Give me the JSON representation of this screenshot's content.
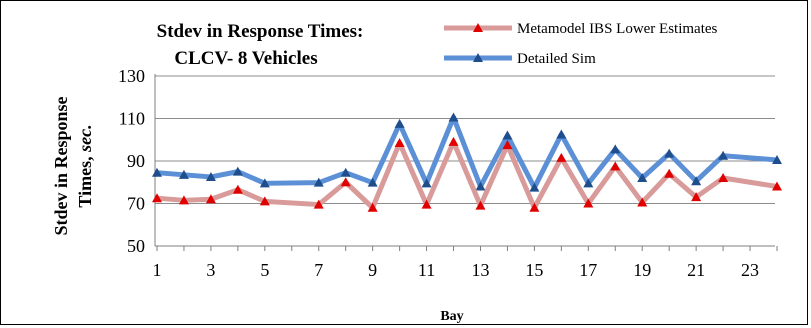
{
  "chart_data": {
    "type": "line",
    "title_lines": [
      "Stdev in Response Times:",
      "CLCV- 8 Vehicles"
    ],
    "xlabel": "Bay",
    "ylabel_main": "Stdev in Response",
    "ylabel_plain": "Times, ",
    "ylabel_italic": "sec.",
    "x_ticks": [
      1,
      3,
      5,
      7,
      9,
      11,
      13,
      15,
      17,
      19,
      21,
      23
    ],
    "y_ticks": [
      50,
      70,
      90,
      110,
      130
    ],
    "xlim": [
      1,
      24
    ],
    "ylim": [
      50,
      130
    ],
    "grid": "horizontal",
    "legend_position": "top-right",
    "series": [
      {
        "name": "Detailed Sim",
        "color": "#5b8fd6",
        "marker_color": "#1f4e8c",
        "x": [
          1,
          2,
          3,
          4,
          5,
          7,
          8,
          9,
          10,
          11,
          12,
          13,
          14,
          15,
          16,
          17,
          18,
          19,
          20,
          21,
          22,
          24
        ],
        "y": [
          84.5,
          83.5,
          82.5,
          85,
          79.5,
          79.8,
          84.5,
          79.8,
          107.5,
          79.5,
          110.5,
          78,
          102,
          77.5,
          102.5,
          79.5,
          95.5,
          82,
          93.5,
          80.5,
          92.5,
          90.5
        ]
      },
      {
        "name": "Metamodel IBS Lower Estimates",
        "color": "#d99a9a",
        "marker_color": "#e00000",
        "x": [
          1,
          2,
          3,
          4,
          5,
          7,
          8,
          9,
          10,
          11,
          12,
          13,
          14,
          15,
          16,
          17,
          18,
          19,
          20,
          21,
          22,
          24
        ],
        "y": [
          72.5,
          71.5,
          72,
          76.5,
          71,
          69.5,
          80,
          68,
          98.5,
          69.5,
          99,
          69,
          97.5,
          68,
          91.5,
          70,
          87.5,
          70.5,
          84,
          73,
          82,
          78
        ]
      }
    ]
  }
}
